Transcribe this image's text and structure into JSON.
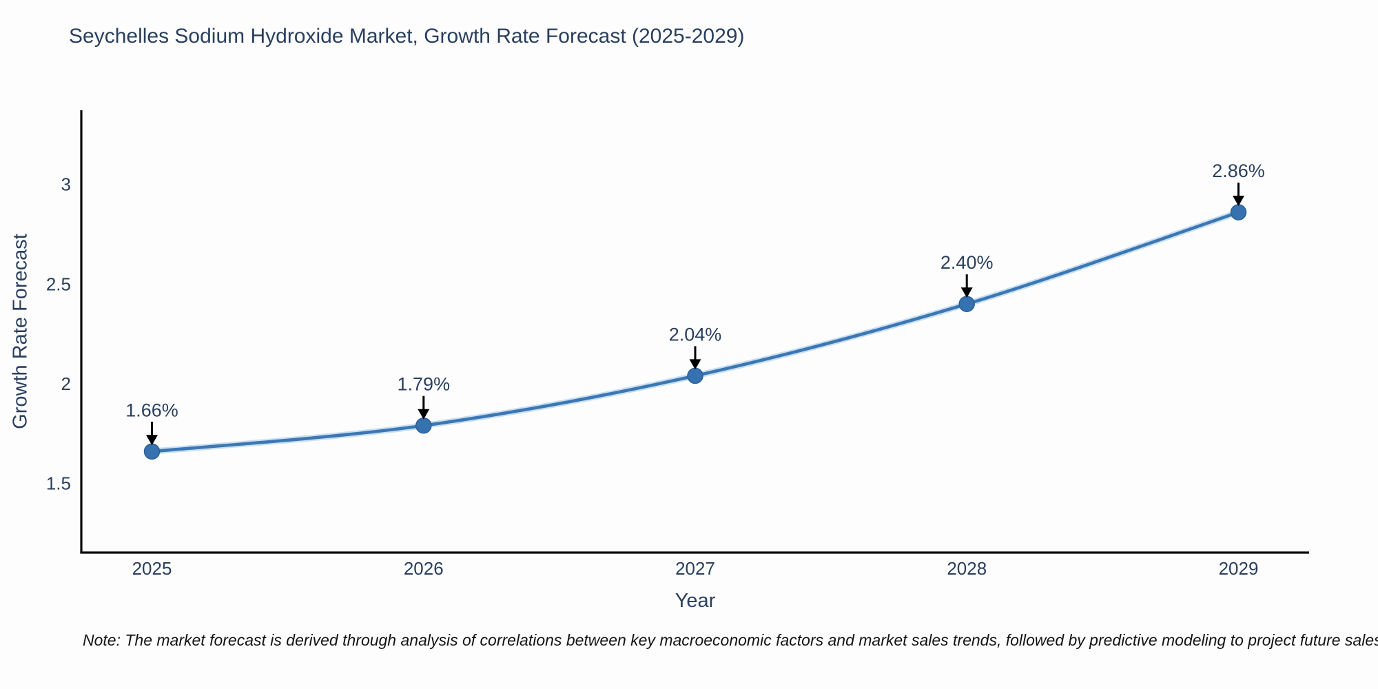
{
  "figure": {
    "note": "Note: The market forecast is derived through analysis of correlations between key macroeconomic factors and market sales trends, followed by predictive modeling to project future sales"
  },
  "chart_data": {
    "type": "line",
    "title": "Seychelles Sodium Hydroxide Market, Growth Rate Forecast (2025-2029)",
    "xlabel": "Year",
    "ylabel": "Growth Rate Forecast",
    "x": [
      2025,
      2026,
      2027,
      2028,
      2029
    ],
    "values": [
      1.66,
      1.79,
      2.04,
      2.4,
      2.86
    ],
    "point_labels": [
      "1.66%",
      "1.79%",
      "2.04%",
      "2.40%",
      "2.86%"
    ],
    "x_tick_labels": [
      "2025",
      "2026",
      "2027",
      "2028",
      "2029"
    ],
    "y_ticks": [
      1.5,
      2,
      2.5,
      3
    ],
    "y_tick_labels": [
      "1.5",
      "2",
      "2.5",
      "3"
    ],
    "xlim": [
      2024.74,
      2029.26
    ],
    "ylim": [
      1.153,
      3.372
    ],
    "grid": false,
    "legend": false,
    "line_shape": "spline",
    "colors": {
      "line": "#3b77b4",
      "line_halo": "#9ec6e8",
      "marker": "#3672b0",
      "marker_edge": "#2d5f96",
      "text": "#2a3f5f",
      "annotation_arrow": "#000000",
      "axis_line": "#0a0a0a"
    }
  }
}
